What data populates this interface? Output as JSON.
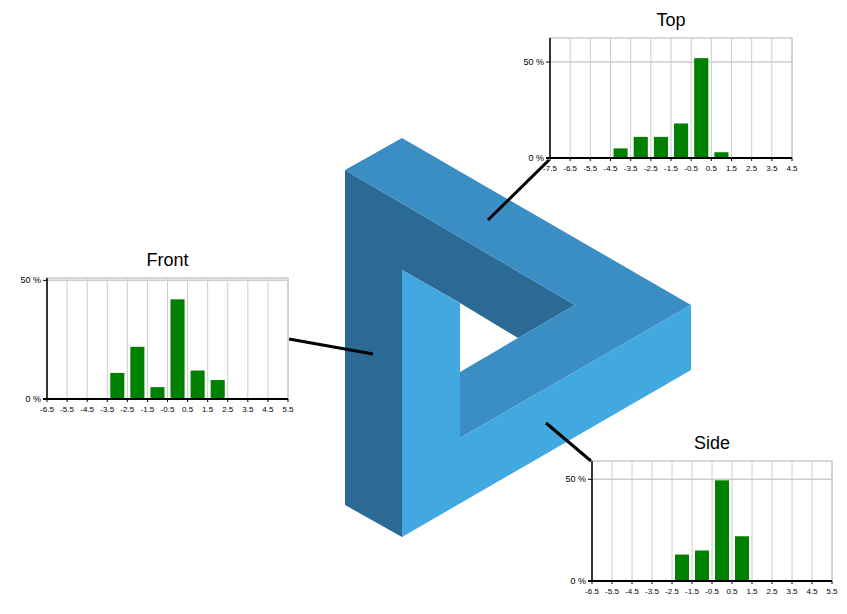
{
  "chart_data": [
    {
      "type": "histogram",
      "title": "Top",
      "bins": [
        -7.5,
        -6.5,
        -5.5,
        -4.5,
        -3.5,
        -2.5,
        -1.5,
        -0.5,
        0.5,
        1.5,
        2.5,
        3.5,
        4.5
      ],
      "values": [
        0,
        0,
        0,
        5,
        11,
        11,
        18,
        52,
        3,
        0,
        0,
        0
      ],
      "color": "#008000",
      "xlim": [
        -7.5,
        4.5
      ],
      "xticks": [
        -7.5,
        -6.5,
        -5.5,
        -4.5,
        -3.5,
        -2.5,
        -1.5,
        -0.5,
        0.5,
        1.5,
        2.5,
        3.5,
        4.5
      ],
      "ylim": [
        0,
        62.5
      ],
      "yticks": [
        {
          "value": 0,
          "label": "0 %"
        },
        {
          "value": 50,
          "label": "50 %"
        }
      ],
      "grid": true
    },
    {
      "type": "histogram",
      "title": "Front",
      "bins": [
        -6.5,
        -5.5,
        -4.5,
        -3.5,
        -2.5,
        -1.5,
        -0.5,
        0.5,
        1.5,
        2.5,
        3.5,
        4.5,
        5.5
      ],
      "values": [
        0,
        0,
        0,
        11,
        22,
        5,
        42,
        12,
        8,
        0,
        0,
        0
      ],
      "color": "#008000",
      "xlim": [
        -6.5,
        5.5
      ],
      "xticks": [
        -6.5,
        -5.5,
        -4.5,
        -3.5,
        -2.5,
        -1.5,
        -0.5,
        0.5,
        1.5,
        2.5,
        3.5,
        4.5,
        5.5
      ],
      "ylim": [
        0,
        51
      ],
      "yticks": [
        {
          "value": 0,
          "label": "0 %"
        },
        {
          "value": 50,
          "label": "50 %"
        }
      ],
      "grid": true
    },
    {
      "type": "histogram",
      "title": "Side",
      "bins": [
        -6.5,
        -5.5,
        -4.5,
        -3.5,
        -2.5,
        -1.5,
        -0.5,
        0.5,
        1.5,
        2.5,
        3.5,
        4.5,
        5.5
      ],
      "values": [
        0,
        0,
        0,
        0,
        13,
        15,
        49.5,
        22,
        0.5,
        0,
        0,
        0
      ],
      "color": "#008000",
      "xlim": [
        -6.5,
        5.5
      ],
      "xticks": [
        -6.5,
        -5.5,
        -4.5,
        -3.5,
        -2.5,
        -1.5,
        -0.5,
        0.5,
        1.5,
        2.5,
        3.5,
        4.5,
        5.5
      ],
      "ylim": [
        0,
        59
      ],
      "yticks": [
        {
          "value": 0,
          "label": "0 %"
        },
        {
          "value": 50,
          "label": "50 %"
        }
      ],
      "grid": true
    }
  ]
}
